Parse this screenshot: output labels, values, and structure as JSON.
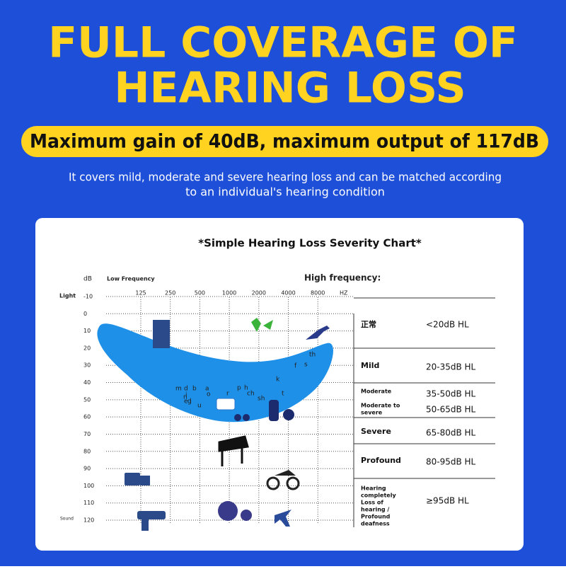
{
  "header": {
    "title_lines": [
      "FULL COVERAGE OF",
      "HEARING LOSS"
    ],
    "highlight": "Maximum gain of 40dB, maximum output of 117dB",
    "description_lines": [
      "It covers mild, moderate and severe hearing loss and can be matched according",
      "to an individual's hearing condition"
    ]
  },
  "chart": {
    "title": "*Simple Hearing Loss Severity Chart*",
    "db_label": "dB",
    "low_frequency_label": "Low Frequency",
    "high_frequency_label": "High frequency:",
    "light_label": "Light",
    "sound_label": "Sound",
    "frequency_unit": "HZ",
    "frequencies": [
      125,
      250,
      500,
      1000,
      2000,
      4000,
      8000
    ],
    "db_levels": [
      -10,
      0,
      10,
      20,
      30,
      40,
      50,
      60,
      70,
      80,
      90,
      100,
      110,
      120
    ],
    "phonemes": [
      "m",
      "d",
      "b",
      "i",
      "a",
      "n",
      "g",
      "o",
      "e",
      "l",
      "u",
      "r",
      "p",
      "h",
      "ch",
      "sh",
      "k",
      "t",
      "f",
      "s",
      "th"
    ],
    "severity": [
      {
        "name": [
          "正常"
        ],
        "range": "<20dB HL"
      },
      {
        "name": [
          "Mild"
        ],
        "range": "20-35dB HL"
      },
      {
        "name": [
          "Moderate"
        ],
        "range": "35-50dB HL"
      },
      {
        "name": [
          "Moderate to",
          "severe"
        ],
        "range": "50-65dB HL"
      },
      {
        "name": [
          "Severe"
        ],
        "range": "65-80dB HL"
      },
      {
        "name": [
          "Profound"
        ],
        "range": "80-95dB HL"
      },
      {
        "name": [
          "Hearing",
          "completely",
          "Loss of",
          "hearing /",
          "Profound",
          "deafness"
        ],
        "range": "≥95dB HL"
      }
    ]
  }
}
